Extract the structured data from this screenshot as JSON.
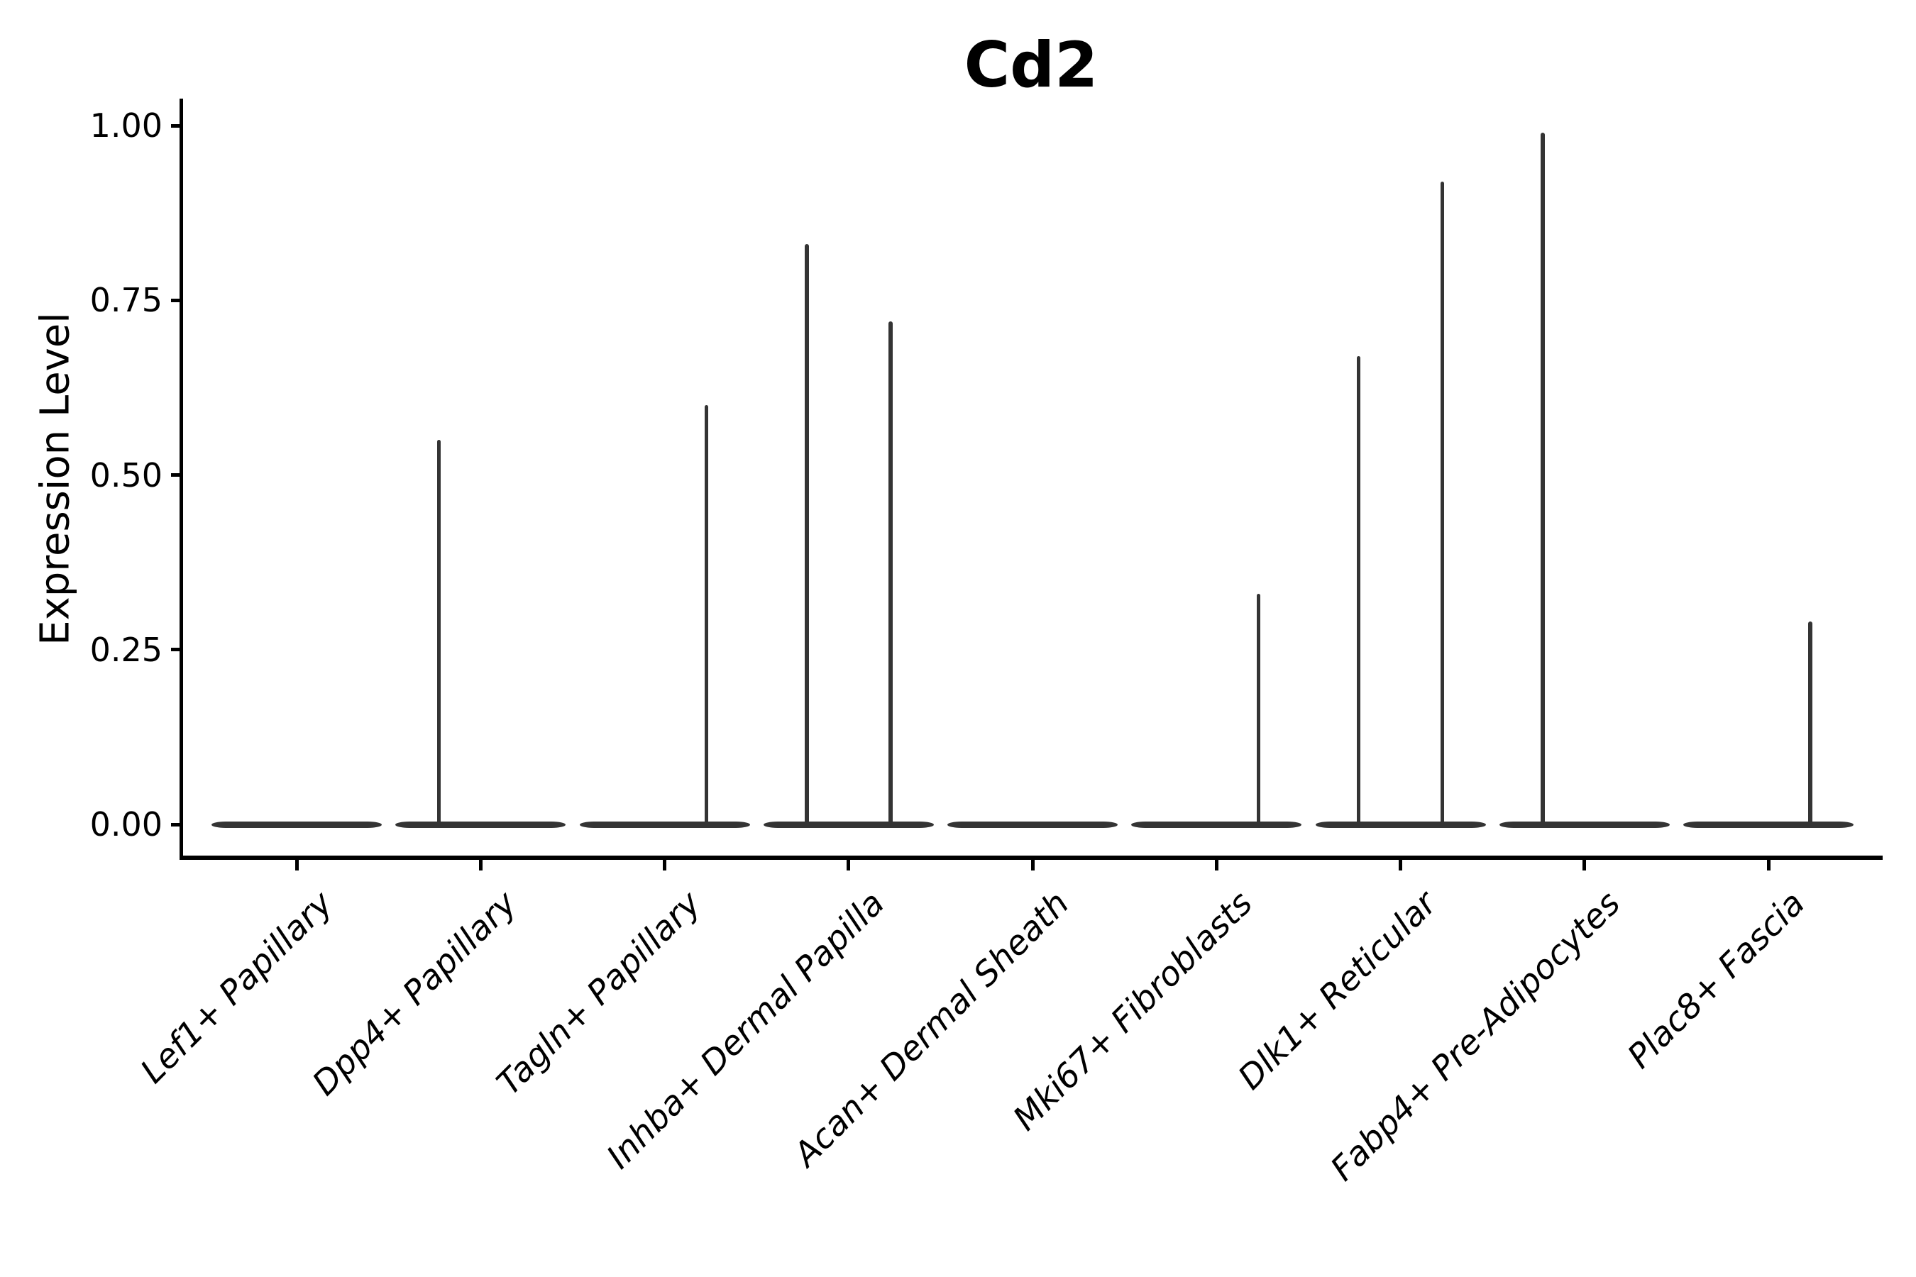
{
  "colors": {
    "background": "#ffffff",
    "axis": "#000000",
    "text": "#000000",
    "violin": "#343434"
  },
  "chart_data": {
    "type": "violin",
    "title": "Cd2",
    "xlabel": "",
    "ylabel": "Expression Level",
    "ylim": [
      0,
      1.0
    ],
    "grid": false,
    "legend": false,
    "y_ticks": [
      0.0,
      0.25,
      0.5,
      0.75,
      1.0
    ],
    "y_tick_labels": [
      "0.00",
      "0.25",
      "0.50",
      "0.75",
      "1.00"
    ],
    "categories": [
      "Lef1+ Papillary",
      "Dpp4+ Papillary",
      "Tagln+ Papillary",
      "Inhba+ Dermal Papilla",
      "Acan+ Dermal Sheath",
      "Mki67+ Fibroblasts",
      "Dlk1+ Reticular",
      "Fabp4+ Pre-Adipocytes",
      "Plac8+ Fascia"
    ],
    "violins": [
      {
        "category": "Lef1+ Papillary",
        "body_at_zero": true,
        "spikes": []
      },
      {
        "category": "Dpp4+ Papillary",
        "body_at_zero": true,
        "spikes": [
          {
            "side": "left",
            "peak": 0.55
          }
        ]
      },
      {
        "category": "Tagln+ Papillary",
        "body_at_zero": true,
        "spikes": [
          {
            "side": "right",
            "peak": 0.6
          }
        ]
      },
      {
        "category": "Inhba+ Dermal Papilla",
        "body_at_zero": true,
        "spikes": [
          {
            "side": "left",
            "peak": 0.83
          },
          {
            "side": "right",
            "peak": 0.72
          }
        ]
      },
      {
        "category": "Acan+ Dermal Sheath",
        "body_at_zero": true,
        "spikes": []
      },
      {
        "category": "Mki67+ Fibroblasts",
        "body_at_zero": true,
        "spikes": [
          {
            "side": "right",
            "peak": 0.33
          }
        ]
      },
      {
        "category": "Dlk1+ Reticular",
        "body_at_zero": true,
        "spikes": [
          {
            "side": "left",
            "peak": 0.67
          },
          {
            "side": "right",
            "peak": 0.92
          }
        ]
      },
      {
        "category": "Fabp4+ Pre-Adipocytes",
        "body_at_zero": true,
        "spikes": [
          {
            "side": "left",
            "peak": 0.99
          }
        ]
      },
      {
        "category": "Plac8+ Fascia",
        "body_at_zero": true,
        "spikes": [
          {
            "side": "right",
            "peak": 0.29
          }
        ]
      }
    ]
  }
}
